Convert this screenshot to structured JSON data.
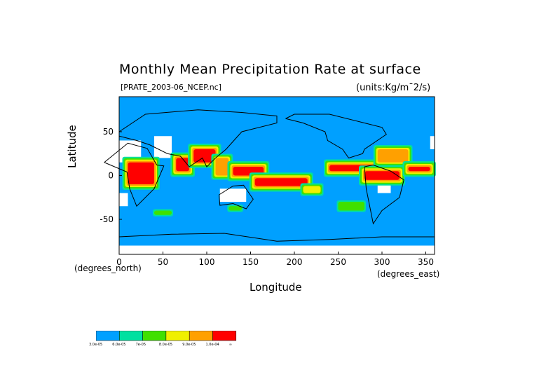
{
  "chart_data": {
    "type": "heatmap",
    "title": "Monthly Mean Precipitation Rate at surface",
    "subtitle": "[PRATE_2003-06_NCEP.nc]",
    "units": "(units:Kg/m^2/s)",
    "xlabel": "Longitude",
    "ylabel": "Latitude",
    "x_unit_label": "(degrees_east)",
    "y_unit_label": "(degrees_north)",
    "xlim": [
      0,
      360
    ],
    "ylim": [
      -90,
      90
    ],
    "x_ticks": [
      "0",
      "50",
      "100",
      "150",
      "200",
      "250",
      "300",
      "350"
    ],
    "y_ticks": [
      "50",
      "0",
      "-50"
    ],
    "colorbar": {
      "colors": [
        "#00a0ff",
        "#00e0a0",
        "#40e000",
        "#f0f000",
        "#ffa000",
        "#ff0000"
      ],
      "labels": [
        "3.0e-05",
        "6.0e-05",
        "7e-05",
        "8.0e-05",
        "9.0e-05",
        "1.0e-04",
        "∞"
      ]
    },
    "regions": [
      {
        "lon": [
          10,
          40
        ],
        "lat": [
          -10,
          15
        ],
        "cls": 5
      },
      {
        "lon": [
          65,
          80
        ],
        "lat": [
          5,
          20
        ],
        "cls": 5
      },
      {
        "lon": [
          85,
          110
        ],
        "lat": [
          15,
          30
        ],
        "cls": 5
      },
      {
        "lon": [
          110,
          125
        ],
        "lat": [
          0,
          20
        ],
        "cls": 4
      },
      {
        "lon": [
          130,
          165
        ],
        "lat": [
          0,
          10
        ],
        "cls": 5
      },
      {
        "lon": [
          155,
          215
        ],
        "lat": [
          -12,
          -3
        ],
        "cls": 5
      },
      {
        "lon": [
          210,
          230
        ],
        "lat": [
          -20,
          -12
        ],
        "cls": 3
      },
      {
        "lon": [
          240,
          290
        ],
        "lat": [
          5,
          12
        ],
        "cls": 5
      },
      {
        "lon": [
          280,
          320
        ],
        "lat": [
          -5,
          5
        ],
        "cls": 5
      },
      {
        "lon": [
          295,
          330
        ],
        "lat": [
          15,
          30
        ],
        "cls": 4
      },
      {
        "lon": [
          40,
          60
        ],
        "lat": [
          -45,
          -40
        ],
        "cls": 2
      },
      {
        "lon": [
          125,
          140
        ],
        "lat": [
          -40,
          -35
        ],
        "cls": 2
      },
      {
        "lon": [
          250,
          280
        ],
        "lat": [
          -40,
          -30
        ],
        "cls": 2
      },
      {
        "lon": [
          330,
          355
        ],
        "lat": [
          5,
          10
        ],
        "cls": 5
      }
    ]
  }
}
